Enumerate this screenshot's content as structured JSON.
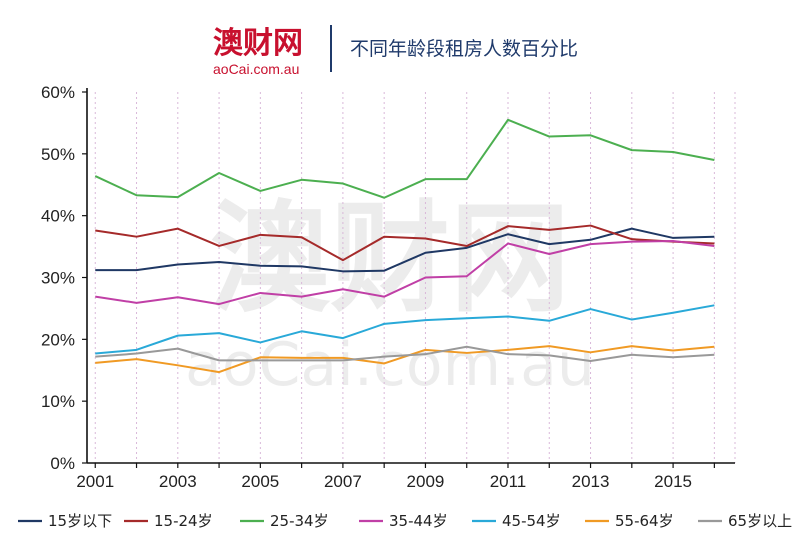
{
  "header": {
    "logo_cn": "澳财网",
    "logo_en": "aoCai.com.au",
    "title": "不同年龄段租房人数百分比",
    "logo_color": "#c8102e",
    "title_color": "#1f3a6b"
  },
  "watermark": {
    "cn": "澳财网",
    "en": "aoCai.com.au"
  },
  "chart_data": {
    "type": "line",
    "title": "不同年龄段租房人数百分比",
    "xlabel": "",
    "ylabel": "",
    "x": [
      2001,
      2002,
      2003,
      2004,
      2005,
      2006,
      2007,
      2008,
      2009,
      2010,
      2011,
      2012,
      2013,
      2014,
      2015,
      2016
    ],
    "x_tick_labels": [
      "2001",
      "2003",
      "2005",
      "2007",
      "2009",
      "2011",
      "2013",
      "2015"
    ],
    "x_tick_values": [
      2001,
      2003,
      2005,
      2007,
      2009,
      2011,
      2013,
      2015
    ],
    "ylim": [
      0,
      60
    ],
    "y_tick_values": [
      0,
      10,
      20,
      30,
      40,
      50,
      60
    ],
    "y_tick_labels": [
      "0%",
      "10%",
      "20%",
      "30%",
      "40%",
      "50%",
      "60%"
    ],
    "grid": "vertical dotted",
    "legend_position": "bottom",
    "series": [
      {
        "name": "15岁以下",
        "color": "#1f3864",
        "values": [
          31.2,
          31.2,
          32.1,
          32.5,
          31.9,
          31.8,
          31.0,
          31.1,
          34.0,
          34.8,
          37.0,
          35.4,
          36.1,
          37.9,
          36.4,
          36.6
        ]
      },
      {
        "name": "15-24岁",
        "color": "#a52a2a",
        "values": [
          37.6,
          36.6,
          37.9,
          35.1,
          36.9,
          36.5,
          32.8,
          36.6,
          36.3,
          35.1,
          38.3,
          37.7,
          38.4,
          36.2,
          35.8,
          35.5
        ]
      },
      {
        "name": "25-34岁",
        "color": "#4caf50",
        "values": [
          46.4,
          43.3,
          43.0,
          46.9,
          44.0,
          45.8,
          45.2,
          42.9,
          45.9,
          45.9,
          55.5,
          52.8,
          53.0,
          50.6,
          50.3,
          49.0
        ]
      },
      {
        "name": "35-44岁",
        "color": "#c03fa6",
        "values": [
          26.9,
          25.9,
          26.8,
          25.7,
          27.5,
          26.9,
          28.1,
          26.9,
          30.0,
          30.2,
          35.5,
          33.8,
          35.4,
          35.8,
          35.9,
          35.1
        ]
      },
      {
        "name": "45-54岁",
        "color": "#29a9d8",
        "values": [
          17.7,
          18.3,
          20.6,
          21.0,
          19.5,
          21.3,
          20.2,
          22.5,
          23.1,
          23.4,
          23.7,
          23.0,
          24.9,
          23.2,
          24.3,
          25.5
        ]
      },
      {
        "name": "55-64岁",
        "color": "#f09a24",
        "values": [
          16.2,
          16.8,
          15.8,
          14.7,
          17.1,
          17.0,
          17.0,
          16.1,
          18.3,
          17.8,
          18.3,
          18.9,
          17.9,
          18.9,
          18.2,
          18.8
        ]
      },
      {
        "name": "65岁以上",
        "color": "#999999",
        "values": [
          17.2,
          17.7,
          18.5,
          16.6,
          16.6,
          16.6,
          16.6,
          17.2,
          17.6,
          18.8,
          17.6,
          17.4,
          16.5,
          17.5,
          17.1,
          17.5
        ]
      }
    ]
  }
}
